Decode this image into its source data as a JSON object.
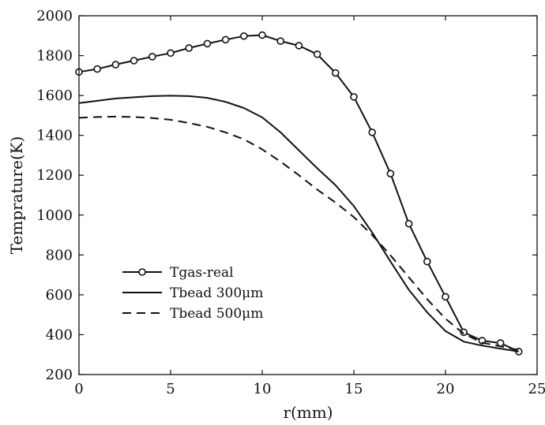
{
  "chart_data": {
    "type": "line",
    "xlabel": "r(mm)",
    "ylabel": "Temprature(K)",
    "xlim": [
      0,
      25
    ],
    "ylim": [
      200,
      2000
    ],
    "xticks": [
      "0",
      "5",
      "10",
      "15",
      "20",
      "25"
    ],
    "yticks": [
      "200",
      "400",
      "600",
      "800",
      "1000",
      "1200",
      "1400",
      "1600",
      "1800",
      "2000"
    ],
    "grid": false,
    "legend_position": "lower-left",
    "series": [
      {
        "name": "Tgas-real",
        "style": "solid-circle-markers",
        "color": "#111111",
        "x": [
          0,
          1,
          2,
          3,
          4,
          5,
          6,
          7,
          8,
          9,
          10,
          11,
          12,
          13,
          14,
          15,
          16,
          17,
          18,
          19,
          20,
          21,
          22,
          23,
          24
        ],
        "y": [
          1718,
          1733,
          1755,
          1775,
          1795,
          1813,
          1838,
          1860,
          1880,
          1898,
          1903,
          1873,
          1850,
          1807,
          1713,
          1593,
          1415,
          1208,
          957,
          767,
          590,
          412,
          370,
          358,
          315
        ]
      },
      {
        "name": "Tbead 300μm",
        "style": "solid",
        "color": "#111111",
        "x": [
          0,
          2,
          4,
          5,
          6,
          7,
          8,
          9,
          10,
          11,
          12,
          13,
          14,
          15,
          16,
          17,
          18,
          19,
          20,
          21,
          22,
          23,
          24
        ],
        "y": [
          1562,
          1585,
          1597,
          1599,
          1597,
          1588,
          1568,
          1537,
          1490,
          1415,
          1325,
          1235,
          1150,
          1045,
          913,
          767,
          625,
          512,
          418,
          365,
          345,
          330,
          315
        ]
      },
      {
        "name": "Tbead 500μm",
        "style": "dashed",
        "color": "#111111",
        "x": [
          0,
          1,
          2,
          3,
          4,
          5,
          6,
          7,
          8,
          9,
          10,
          11,
          12,
          13,
          14,
          15,
          16,
          17,
          18,
          19,
          20,
          21,
          22,
          23,
          24
        ],
        "y": [
          1488,
          1492,
          1494,
          1492,
          1487,
          1478,
          1462,
          1443,
          1415,
          1380,
          1330,
          1268,
          1200,
          1128,
          1063,
          990,
          900,
          798,
          688,
          578,
          480,
          405,
          360,
          342,
          323
        ]
      }
    ]
  },
  "legend": {
    "items": [
      "Tgas-real",
      "Tbead 300μm",
      "Tbead 500μm"
    ]
  }
}
